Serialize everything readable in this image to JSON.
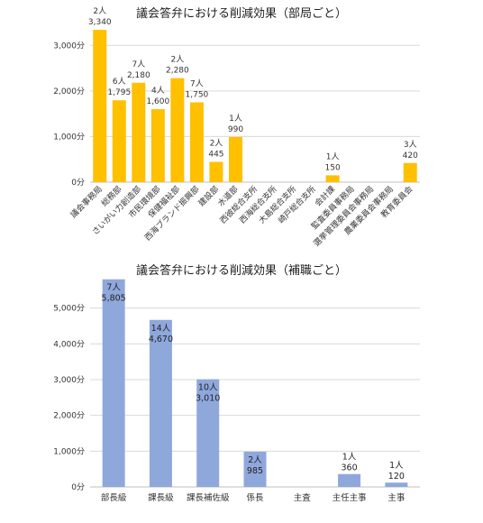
{
  "chart_data": [
    {
      "type": "bar",
      "title": "議会答弁における削減効果（部局ごと）",
      "ylim": [
        0,
        3500
      ],
      "yticks": [
        "0分",
        "1,000分",
        "2,000分",
        "3,000分"
      ],
      "tick_values": [
        0,
        1000,
        2000,
        3000
      ],
      "color": "#FFC000",
      "label_position": "above",
      "categories": [
        "議会事務局",
        "総務部",
        "さいがい力創造部",
        "市民環境部",
        "保健福祉部",
        "西海ブランド振興部",
        "建設部",
        "水道部",
        "西彼総合支所",
        "西海総合支所",
        "大島総合支所",
        "崎戸総合支所",
        "会計課",
        "監査委員事務局",
        "選挙管理委員会事務局",
        "農業委員会事務局",
        "教育委員会"
      ],
      "values": [
        3340,
        1795,
        2180,
        1600,
        2280,
        1750,
        445,
        990,
        0,
        0,
        0,
        0,
        150,
        0,
        0,
        0,
        420
      ],
      "people": [
        "2人",
        "6人",
        "7人",
        "4人",
        "2人",
        "7人",
        "2人",
        "1人",
        "",
        "",
        "",
        "",
        "1人",
        "",
        "",
        "",
        "3人"
      ],
      "value_labels": [
        "3,340",
        "1,795",
        "2,180",
        "1,600",
        "2,280",
        "1,750",
        "445",
        "990",
        "",
        "",
        "",
        "",
        "150",
        "",
        "",
        "",
        "420"
      ]
    },
    {
      "type": "bar",
      "title": "議会答弁における削減効果（補職ごと）",
      "ylim": [
        0,
        6000
      ],
      "yticks": [
        "0分",
        "1,000分",
        "2,000分",
        "3,000分",
        "4,000分",
        "5,000分"
      ],
      "tick_values": [
        0,
        1000,
        2000,
        3000,
        4000,
        5000
      ],
      "color": "#8FA8DC",
      "label_position": "inside",
      "categories": [
        "部長級",
        "課長級",
        "課長補佐級",
        "係長",
        "主査",
        "主任主事",
        "主事"
      ],
      "values": [
        5805,
        4670,
        3010,
        985,
        0,
        360,
        120
      ],
      "people": [
        "7人",
        "14人",
        "10人",
        "2人",
        "",
        "1人",
        "1人"
      ],
      "value_labels": [
        "5,805",
        "4,670",
        "3,010",
        "985",
        "",
        "360",
        "120"
      ]
    }
  ]
}
